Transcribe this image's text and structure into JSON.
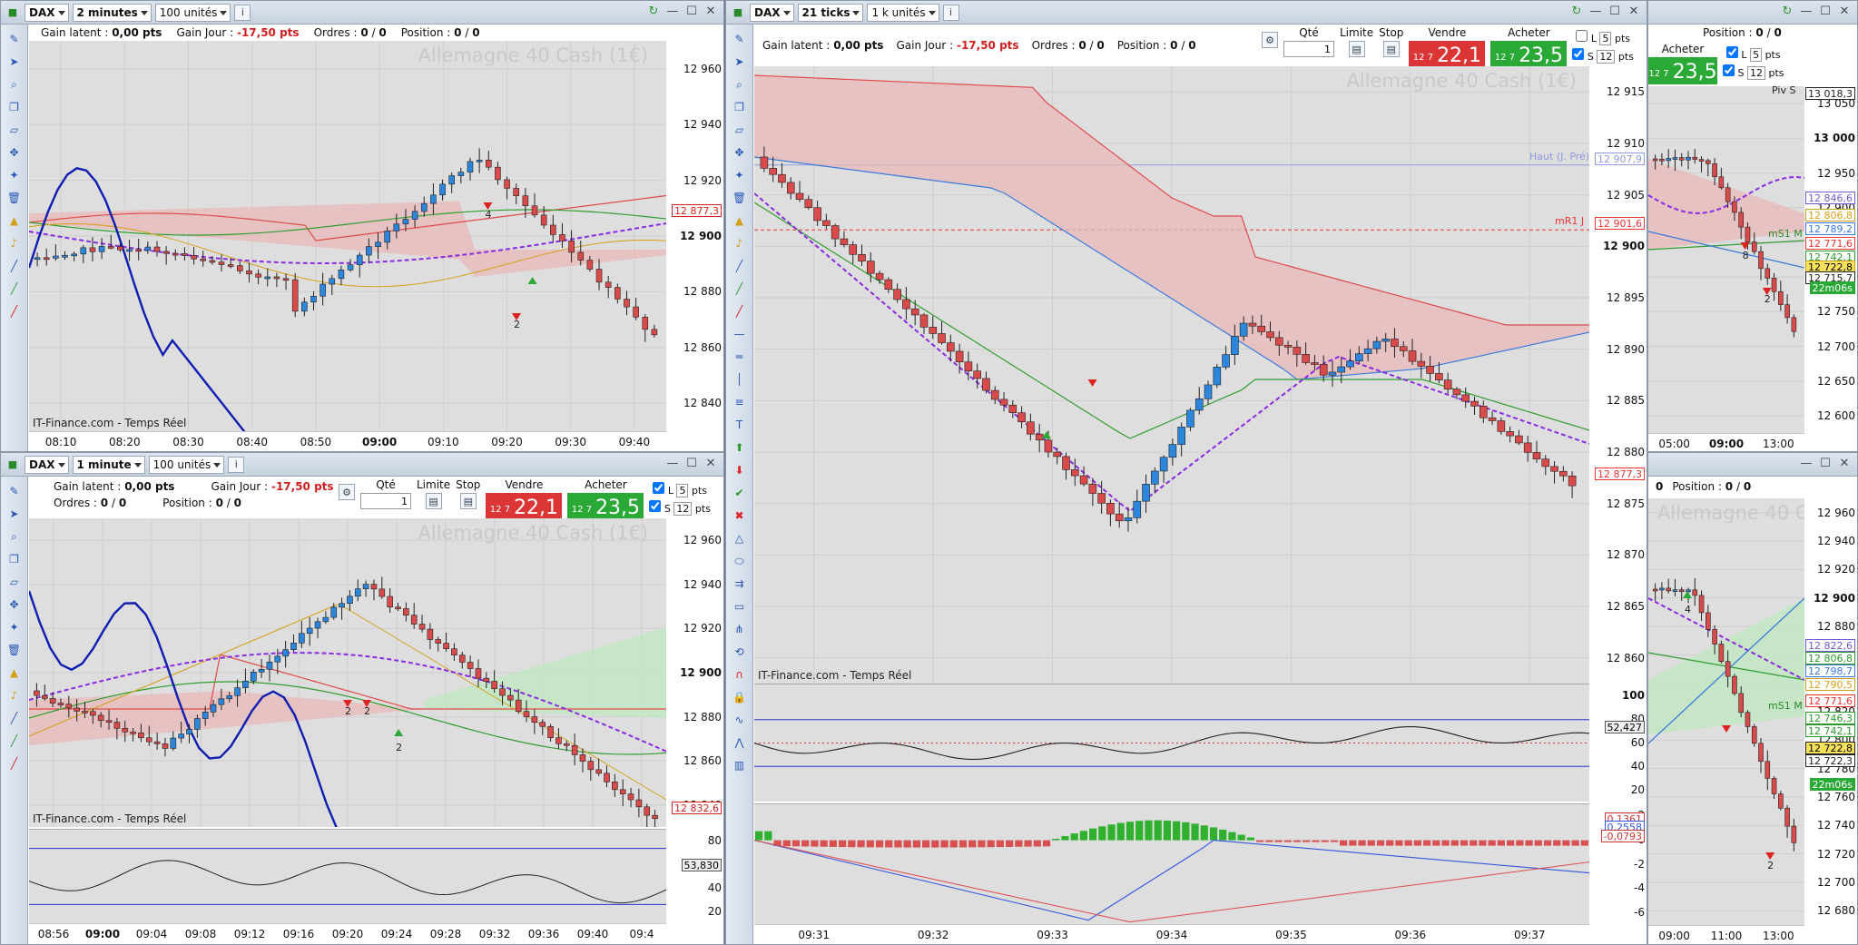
{
  "common": {
    "gain_latent_label": "Gain latent :",
    "gain_latent_value": "0,00 pts",
    "gain_jour_label": "Gain Jour :",
    "gain_jour_value": "-17,50 pts",
    "ordres_label": "Ordres :",
    "ordres_value_a": "0",
    "ordres_value_b": "0",
    "position_label": "Position :",
    "position_value_a": "0",
    "position_value_b": "0",
    "qte_label": "Qté",
    "qte_value": "1",
    "limite_label": "Limite",
    "stop_label": "Stop",
    "vendre_label": "Vendre",
    "acheter_label": "Acheter",
    "price_prefix": "12 7",
    "sell_price": "22,1",
    "buy_price": "23,5",
    "l_label": "L",
    "s_label": "S",
    "l_value": "5",
    "s_value": "12",
    "pts": "pts",
    "instrument_watermark": "Allemagne 40 Cash (1€)",
    "source_label": "IT-Finance.com - Temps Réel",
    "info_icon": "i"
  },
  "windows": {
    "tl": {
      "instrument": "DAX",
      "period": "2 minutes",
      "units": "100 unités",
      "price_ticks": [
        "12 960",
        "12 940",
        "12 920",
        "12 900",
        "12 880",
        "12 860",
        "12 840"
      ],
      "time_ticks": [
        "08:10",
        "08:20",
        "08:30",
        "08:40",
        "08:50",
        "09:00",
        "09:10",
        "09:20",
        "09:30",
        "09:40"
      ],
      "last_price": "12 877,3",
      "arrow_counts": [
        "4",
        "2"
      ]
    },
    "bl": {
      "instrument": "DAX",
      "period": "1 minute",
      "units": "100 unités",
      "price_ticks": [
        "12 960",
        "12 940",
        "12 920",
        "12 900",
        "12 880",
        "12 860",
        "12 840"
      ],
      "time_ticks": [
        "08:56",
        "09:00",
        "09:04",
        "09:08",
        "09:12",
        "09:16",
        "09:20",
        "09:24",
        "09:28",
        "09:32",
        "09:36",
        "09:40",
        "09:4"
      ],
      "last_price": "12 832,6",
      "osc_ticks": [
        "80",
        "60",
        "40",
        "20"
      ],
      "osc_value": "53,830",
      "arrow_counts": [
        "2",
        "2",
        "2"
      ]
    },
    "mid": {
      "instrument": "DAX",
      "period": "21 ticks",
      "units": "1 k unités",
      "price_ticks": [
        "12 915",
        "12 910",
        "12 905",
        "12 900",
        "12 895",
        "12 890",
        "12 885",
        "12 880",
        "12 875",
        "12 870",
        "12 865",
        "12 860"
      ],
      "time_ticks": [
        "09:31",
        "09:32",
        "09:33",
        "09:34",
        "09:35",
        "09:36",
        "09:37"
      ],
      "haut_label": "Haut (J. Pré)",
      "haut_value": "12 907,9",
      "mr1_label": "mR1 J",
      "mr1_value": "12 901,6",
      "last_price": "12 877,3",
      "osc1_ticks": [
        "100",
        "80",
        "60",
        "40",
        "20"
      ],
      "osc1_value": "52,427",
      "osc2_ticks": [
        "2",
        "0",
        "-2",
        "-4",
        "-6"
      ],
      "osc2_values": [
        "0,1361",
        "0,2558",
        "-0,0793"
      ]
    },
    "tr": {
      "price_ticks": [
        "13 050",
        "13 000",
        "12 950",
        "12 900",
        "12 850",
        "12 800",
        "12 750",
        "12 700",
        "12 650",
        "12 600"
      ],
      "time_ticks": [
        "05:00",
        "09:00",
        "13:00"
      ],
      "levels": [
        "13 018,3",
        "12 846,6",
        "12 806,8",
        "12 789,2",
        "12 771,6",
        "12 742,1",
        "12 722,8",
        "12 715,7"
      ],
      "piv_label": "Piv S",
      "ms1_label": "mS1 M",
      "countdown": "22m06s",
      "arrow_counts": [
        "8",
        "2"
      ]
    },
    "br": {
      "price_ticks": [
        "12 960",
        "12 940",
        "12 920",
        "12 900",
        "12 880",
        "12 860",
        "12 840",
        "12 820",
        "12 800",
        "12 780",
        "12 760",
        "12 740",
        "12 720",
        "12 700",
        "12 680"
      ],
      "time_ticks": [
        "09:00",
        "11:00",
        "13:00"
      ],
      "levels": [
        "12 822,6",
        "12 806,8",
        "12 798,7",
        "12 790,5",
        "12 771,6",
        "12 746,3",
        "12 742,1",
        "12 722,8",
        "12 722,3"
      ],
      "ms1_label": "mS1 M",
      "countdown": "22m06s",
      "arrow_counts": [
        "4",
        "2"
      ]
    }
  },
  "colors": {
    "bull": "#2b86dc",
    "bear": "#d94b4b",
    "cloud_red": "#e8b8b8",
    "cloud_green": "#bfe7bf",
    "ma": "#8a2be2",
    "kijun": "#e14a4a",
    "tenkan": "#2f9e2f",
    "sma": "#d4a017",
    "blue_osc": "#0f1db0"
  },
  "icons": [
    "pen-icon",
    "cursor-icon",
    "zoom-icon",
    "copy-icon",
    "ruler-icon",
    "move-icon",
    "magic-icon",
    "trash-icon",
    "alert-icon",
    "bell-icon",
    "line-icon"
  ]
}
